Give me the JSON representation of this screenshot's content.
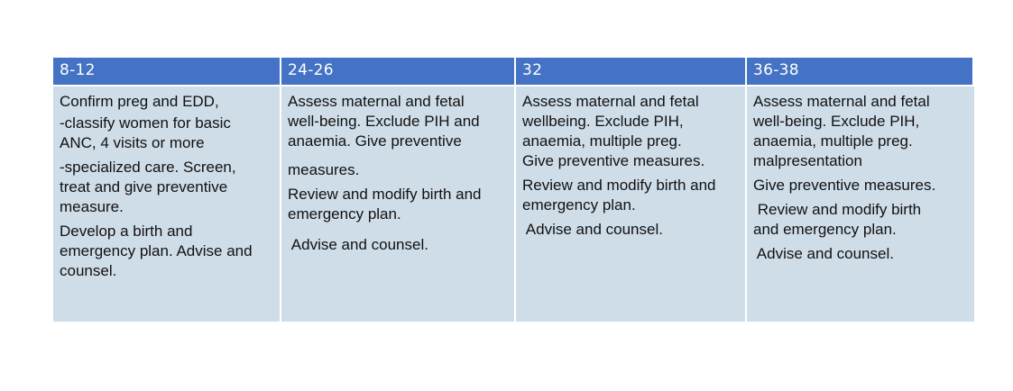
{
  "table": {
    "headers": [
      "8-12",
      "24-26",
      "32",
      "36-38"
    ],
    "columns": [
      [
        "Confirm preg and EDD,",
        "-classify women for basic",
        "ANC, 4 visits or more",
        "-specialized care. Screen,",
        "treat and give preventive",
        "measure.",
        "Develop a birth and",
        "emergency plan. Advise and",
        "counsel."
      ],
      [
        "Assess maternal and fetal",
        "well-being. Exclude PIH and",
        "anaemia. Give preventive",
        "measures.",
        "Review and modify birth and",
        "emergency plan.",
        " Advise and counsel."
      ],
      [
        "Assess maternal and fetal",
        "wellbeing. Exclude PIH,",
        "anaemia, multiple preg.",
        "Give preventive measures.",
        "Review and modify birth and",
        "emergency plan.",
        " Advise and counsel."
      ],
      [
        "Assess maternal and fetal",
        "well-being. Exclude PIH,",
        "anaemia, multiple preg.",
        "malpresentation",
        "Give preventive measures.",
        " Review and modify birth",
        "and emergency plan.",
        " Advise and counsel."
      ]
    ]
  }
}
